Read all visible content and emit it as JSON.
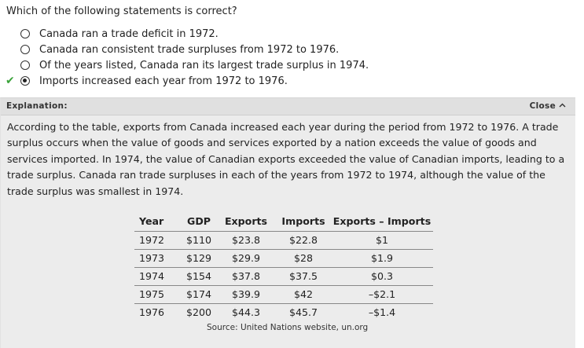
{
  "question": "Which of the following statements is correct?",
  "options": [
    {
      "label": "Canada ran a trade deficit in 1972.",
      "selected": false,
      "correct": false
    },
    {
      "label": "Canada ran consistent trade surpluses from 1972 to 1976.",
      "selected": false,
      "correct": false
    },
    {
      "label": "Of the years listed, Canada ran its largest trade surplus in 1974.",
      "selected": false,
      "correct": false
    },
    {
      "label": "Imports increased each year from 1972 to 1976.",
      "selected": true,
      "correct": true
    }
  ],
  "panel": {
    "title": "Explanation:",
    "close_label": "Close",
    "explanation": "According to the table, exports from Canada increased each year during the period from 1972 to 1976. A trade surplus occurs when the value of goods and services exported by a nation exceeds the value of goods and services imported. In 1974, the value of Canadian exports exceeded the value of Canadian imports, leading to a trade surplus. Canada ran trade surpluses in each of the years from 1972 to 1974, although the value of the trade surplus was smallest in 1974."
  },
  "table": {
    "headers": [
      "Year",
      "GDP",
      "Exports",
      "Imports",
      "Exports – Imports"
    ],
    "rows": [
      [
        "1972",
        "$110",
        "$23.8",
        "$22.8",
        "$1"
      ],
      [
        "1973",
        "$129",
        "$29.9",
        "$28",
        "$1.9"
      ],
      [
        "1974",
        "$154",
        "$37.8",
        "$37.5",
        "$0.3"
      ],
      [
        "1975",
        "$174",
        "$39.9",
        "$42",
        "–$2.1"
      ],
      [
        "1976",
        "$200",
        "$44.3",
        "$45.7",
        "–$1.4"
      ]
    ],
    "source": "Source: United Nations website, un.org"
  },
  "colors": {
    "correct_check": "#3aa33a",
    "panel_bg": "#ececec",
    "panel_header_bg": "#e0e0e0"
  }
}
